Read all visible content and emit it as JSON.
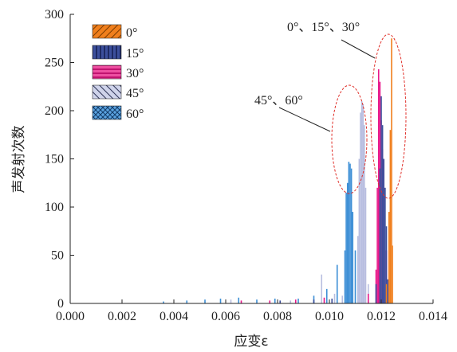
{
  "chart_data": {
    "type": "bar",
    "xlabel": "应变ε",
    "ylabel": "声发射次数",
    "xlim": [
      0.0,
      0.014
    ],
    "ylim": [
      0,
      300
    ],
    "x_ticks": [
      "0.000",
      "0.002",
      "0.004",
      "0.006",
      "0.008",
      "0.010",
      "0.012",
      "0.014"
    ],
    "y_ticks": [
      "0",
      "50",
      "100",
      "150",
      "200",
      "250",
      "300"
    ],
    "grid": false,
    "legend_position": "top-left",
    "annotations": [
      {
        "text": "0°、15°、30°",
        "target": "0°, 15°, 30° peak cluster"
      },
      {
        "text": "45°、60°",
        "target": "45°, 60° peak cluster"
      }
    ],
    "series": [
      {
        "name": "0°",
        "color": "#f07f1d",
        "pattern": "diag-right",
        "points": [
          [
            0.0122,
            20
          ],
          [
            0.0123,
            95
          ],
          [
            0.01235,
            180
          ],
          [
            0.0124,
            275
          ],
          [
            0.01243,
            60
          ]
        ]
      },
      {
        "name": "15°",
        "color": "#3c4f9c",
        "pattern": "vertical",
        "points": [
          [
            0.0081,
            3
          ],
          [
            0.0094,
            4
          ],
          [
            0.0101,
            5
          ],
          [
            0.0118,
            20
          ],
          [
            0.01195,
            140
          ],
          [
            0.012,
            215
          ],
          [
            0.01205,
            185
          ],
          [
            0.0121,
            150
          ],
          [
            0.01215,
            120
          ],
          [
            0.0122,
            80
          ],
          [
            0.01225,
            25
          ]
        ]
      },
      {
        "name": "30°",
        "color": "#e8178a",
        "pattern": "horizontal",
        "points": [
          [
            0.0066,
            3
          ],
          [
            0.0077,
            3
          ],
          [
            0.0087,
            4
          ],
          [
            0.0098,
            6
          ],
          [
            0.0115,
            10
          ],
          [
            0.0118,
            35
          ],
          [
            0.01185,
            120
          ],
          [
            0.0119,
            243
          ],
          [
            0.01195,
            230
          ],
          [
            0.012,
            190
          ],
          [
            0.01205,
            160
          ],
          [
            0.0121,
            110
          ],
          [
            0.0122,
            55
          ],
          [
            0.0123,
            15
          ]
        ]
      },
      {
        "name": "45°",
        "color": "#b8bee0",
        "pattern": "diag-left",
        "points": [
          [
            0.0062,
            4
          ],
          [
            0.0085,
            3
          ],
          [
            0.0097,
            30
          ],
          [
            0.0102,
            10
          ],
          [
            0.0105,
            8
          ],
          [
            0.0111,
            70
          ],
          [
            0.01115,
            150
          ],
          [
            0.0112,
            198
          ],
          [
            0.01125,
            210
          ],
          [
            0.0113,
            207
          ],
          [
            0.01135,
            185
          ],
          [
            0.0114,
            120
          ],
          [
            0.0115,
            20
          ]
        ]
      },
      {
        "name": "60°",
        "color": "#3d8fd6",
        "pattern": "cross",
        "points": [
          [
            0.0036,
            2
          ],
          [
            0.0045,
            3
          ],
          [
            0.0052,
            4
          ],
          [
            0.0058,
            5
          ],
          [
            0.0065,
            6
          ],
          [
            0.0072,
            4
          ],
          [
            0.0079,
            5
          ],
          [
            0.0088,
            5
          ],
          [
            0.0094,
            8
          ],
          [
            0.0099,
            15
          ],
          [
            0.0103,
            40
          ],
          [
            0.0106,
            55
          ],
          [
            0.01065,
            115
          ],
          [
            0.0107,
            125
          ],
          [
            0.01075,
            147
          ],
          [
            0.0108,
            145
          ],
          [
            0.01085,
            140
          ],
          [
            0.0109,
            95
          ],
          [
            0.011,
            55
          ],
          [
            0.0111,
            25
          ]
        ]
      }
    ]
  }
}
